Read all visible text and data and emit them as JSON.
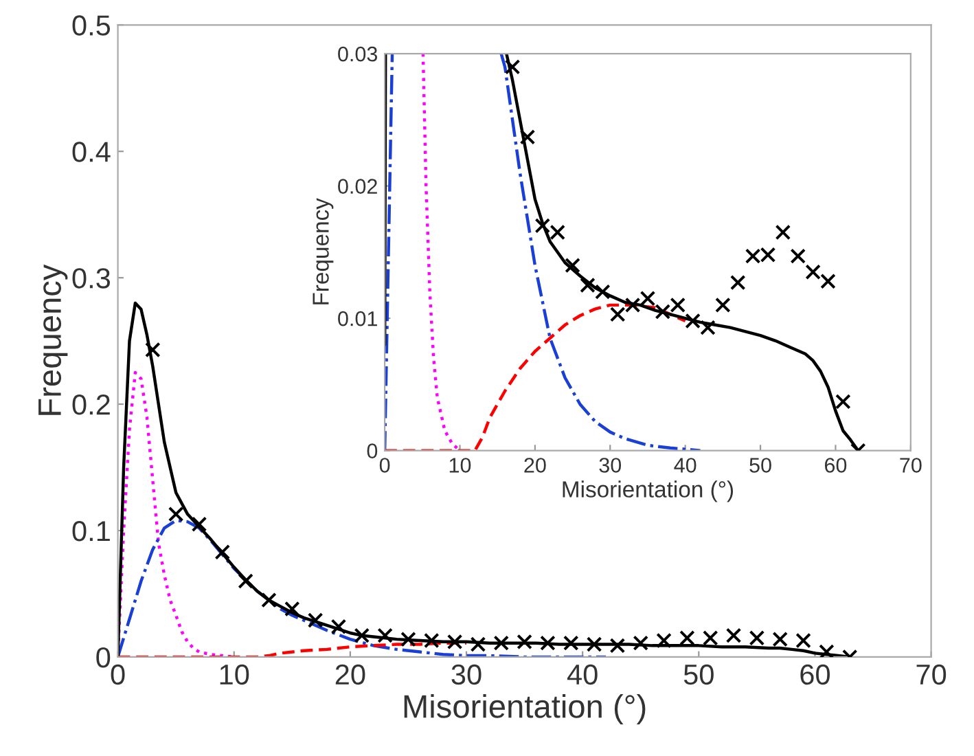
{
  "chart_data": [
    {
      "type": "line",
      "xlabel": "Misorientation (°)",
      "ylabel": "Frequency",
      "xlim": [
        0,
        70
      ],
      "ylim": [
        0,
        0.5
      ],
      "xticks": [
        0,
        10,
        20,
        30,
        40,
        50,
        60,
        70
      ],
      "yticks": [
        0,
        0.1,
        0.2,
        0.3,
        0.4,
        0.5
      ],
      "grid": false,
      "legend": false,
      "series": [
        {
          "color": "#ff00ff",
          "line_style": "dotted",
          "x": [
            0,
            0.5,
            1,
            1.5,
            2,
            2.5,
            3,
            3.5,
            4,
            4.5,
            5,
            5.5,
            6,
            6.5,
            7,
            8,
            9,
            10
          ],
          "values": [
            0,
            0.1,
            0.18,
            0.225,
            0.22,
            0.19,
            0.14,
            0.09,
            0.065,
            0.045,
            0.033,
            0.02,
            0.012,
            0.007,
            0.004,
            0.002,
            0.001,
            0
          ]
        },
        {
          "color": "#1a3fd6",
          "line_style": "dashdot",
          "x": [
            0,
            1,
            2,
            3,
            4,
            5,
            6,
            7,
            8,
            9,
            10,
            12,
            14,
            15,
            16,
            18,
            20,
            22,
            24,
            26,
            28,
            30,
            32,
            35,
            38,
            42
          ],
          "values": [
            0,
            0.03,
            0.06,
            0.085,
            0.102,
            0.108,
            0.107,
            0.102,
            0.092,
            0.081,
            0.07,
            0.052,
            0.038,
            0.033,
            0.029,
            0.021,
            0.014,
            0.009,
            0.006,
            0.004,
            0.002,
            0.001,
            0.001,
            0,
            0,
            0
          ]
        },
        {
          "color": "#ff0000",
          "line_style": "dashed",
          "x": [
            0,
            12,
            13,
            14,
            16,
            18,
            20,
            22,
            24,
            26,
            28,
            30
          ],
          "values": [
            0,
            0,
            0.001,
            0.003,
            0.005,
            0.006,
            0.008,
            0.009,
            0.01,
            0.01,
            0.011,
            0.011
          ]
        },
        {
          "color": "#000000",
          "line_style": "solid",
          "x": [
            0,
            0.5,
            1,
            1.5,
            2,
            2.5,
            3,
            4,
            5,
            6,
            7,
            8,
            9,
            10,
            11,
            12,
            13,
            14,
            15,
            16,
            17,
            18,
            19,
            20,
            21,
            22,
            24,
            26,
            28,
            30,
            32,
            34,
            36,
            38,
            40,
            42,
            44,
            46,
            48,
            50,
            52,
            54,
            56,
            57,
            58,
            59,
            60,
            61,
            62,
            63
          ],
          "values": [
            0,
            0.15,
            0.25,
            0.28,
            0.275,
            0.255,
            0.23,
            0.17,
            0.13,
            0.113,
            0.103,
            0.093,
            0.082,
            0.071,
            0.061,
            0.052,
            0.045,
            0.04,
            0.035,
            0.031,
            0.028,
            0.025,
            0.022,
            0.019,
            0.017,
            0.016,
            0.014,
            0.013,
            0.012,
            0.012,
            0.011,
            0.011,
            0.011,
            0.01,
            0.01,
            0.01,
            0.01,
            0.009,
            0.009,
            0.009,
            0.008,
            0.008,
            0.007,
            0.007,
            0.006,
            0.005,
            0.003,
            0.002,
            0.001,
            0
          ]
        },
        {
          "type": "scatter",
          "color": "#000000",
          "marker": "cross",
          "x": [
            3,
            5,
            7,
            9,
            11,
            13,
            15,
            17,
            19,
            21,
            23,
            25,
            27,
            29,
            31,
            33,
            35,
            37,
            39,
            41,
            43,
            45,
            47,
            49,
            51,
            53,
            55,
            57,
            59,
            61,
            63
          ],
          "values": [
            0.243,
            0.113,
            0.105,
            0.083,
            0.06,
            0.045,
            0.038,
            0.029,
            0.024,
            0.017,
            0.017,
            0.014,
            0.013,
            0.012,
            0.01,
            0.011,
            0.012,
            0.011,
            0.011,
            0.01,
            0.009,
            0.011,
            0.013,
            0.015,
            0.015,
            0.017,
            0.015,
            0.014,
            0.013,
            0.004,
            0
          ]
        }
      ]
    },
    {
      "type": "line",
      "xlabel": "Misorientation (°)",
      "ylabel": "Frequency",
      "xlim": [
        0,
        70
      ],
      "ylim": [
        0,
        0.03
      ],
      "xticks": [
        0,
        10,
        20,
        30,
        40,
        50,
        60,
        70
      ],
      "yticks": [
        0,
        0.01,
        0.02,
        0.03
      ],
      "grid": false,
      "legend": false,
      "series": [
        {
          "color": "#ff00ff",
          "line_style": "dotted",
          "x": [
            5.1,
            5.5,
            6,
            6.5,
            7,
            8,
            9,
            10
          ],
          "values": [
            0.03,
            0.02,
            0.012,
            0.007,
            0.004,
            0.0015,
            0.0005,
            0
          ]
        },
        {
          "color": "#1a3fd6",
          "line_style": "dashdot",
          "x": [
            0,
            1,
            8,
            15.5,
            16,
            18,
            20,
            22,
            24,
            26,
            28,
            30,
            32,
            35,
            38,
            42
          ],
          "values": [
            0,
            0.03,
            null,
            0.03,
            0.029,
            0.021,
            0.014,
            0.0085,
            0.0055,
            0.0035,
            0.0022,
            0.0014,
            0.0009,
            0.0004,
            0.0002,
            0
          ]
        },
        {
          "color": "#ff0000",
          "line_style": "dashed",
          "x": [
            0,
            12,
            13,
            14,
            16,
            18,
            20,
            22,
            24,
            26,
            28,
            30,
            33,
            36,
            38,
            40
          ],
          "values": [
            0,
            0,
            0.001,
            0.0025,
            0.0045,
            0.0062,
            0.0075,
            0.0085,
            0.0095,
            0.0102,
            0.0107,
            0.011,
            0.011,
            0.0108,
            0.0103,
            0.0098
          ]
        },
        {
          "color": "#000000",
          "line_style": "solid",
          "x": [
            0,
            0.1,
            8,
            16.2,
            17,
            18,
            19,
            20,
            21,
            22,
            24,
            26,
            28,
            30,
            32,
            34,
            36,
            38,
            40,
            42,
            44,
            46,
            48,
            50,
            52,
            54,
            56,
            57,
            58,
            59,
            60,
            61,
            62,
            63
          ],
          "values": [
            0.008,
            0.03,
            null,
            0.03,
            0.028,
            0.025,
            0.022,
            0.019,
            0.0172,
            0.0158,
            0.0142,
            0.0132,
            0.0123,
            0.0117,
            0.0112,
            0.011,
            0.0106,
            0.0103,
            0.01,
            0.0097,
            0.0095,
            0.0093,
            0.009,
            0.0087,
            0.0083,
            0.0078,
            0.0073,
            0.0068,
            0.006,
            0.0048,
            0.003,
            0.0015,
            0.0008,
            0
          ]
        },
        {
          "type": "scatter",
          "color": "#000000",
          "marker": "cross",
          "x": [
            17,
            19,
            21,
            23,
            25,
            27,
            29,
            31,
            33,
            35,
            37,
            39,
            41,
            43,
            45,
            47,
            49,
            51,
            53,
            55,
            57,
            59,
            61,
            63
          ],
          "values": [
            0.029,
            0.0237,
            0.017,
            0.0165,
            0.014,
            0.0125,
            0.012,
            0.0103,
            0.011,
            0.0115,
            0.0105,
            0.011,
            0.0098,
            0.0093,
            0.011,
            0.0127,
            0.0147,
            0.0148,
            0.0165,
            0.0147,
            0.0135,
            0.0128,
            0.0037,
            0
          ]
        }
      ]
    }
  ]
}
